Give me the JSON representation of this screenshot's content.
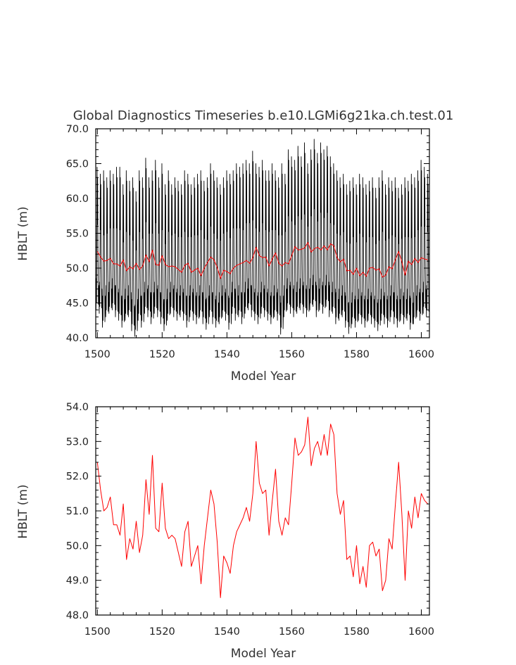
{
  "chart_data": [
    {
      "type": "line",
      "title": "Global Diagnostics Timeseries b.e10.LGMi6g21ka.ch.test.01",
      "xlabel": "Model Year",
      "ylabel": "HBLT (m)",
      "xlim": [
        1499.5,
        1602.5
      ],
      "ylim": [
        40.0,
        70.0
      ],
      "xticks": [
        1500,
        1520,
        1540,
        1560,
        1580,
        1600
      ],
      "yticks": [
        "40.0",
        "45.0",
        "50.0",
        "55.0",
        "60.0",
        "65.0",
        "70.0"
      ],
      "series": [
        {
          "kind": "monthly",
          "color": "#000000",
          "annual_max": [
            64.5,
            63.5,
            64.0,
            63.0,
            64.0,
            63.5,
            64.5,
            64.5,
            62.0,
            64.0,
            62.5,
            63.0,
            61.0,
            64.0,
            63.0,
            65.8,
            63.0,
            64.0,
            65.5,
            63.0,
            65.0,
            62.0,
            64.0,
            62.0,
            63.0,
            62.5,
            62.0,
            64.0,
            63.5,
            62.0,
            63.0,
            63.5,
            64.0,
            62.5,
            63.0,
            65.0,
            64.0,
            63.0,
            62.0,
            63.0,
            64.0,
            63.5,
            64.0,
            65.0,
            64.5,
            65.0,
            65.5,
            65.0,
            66.8,
            65.0,
            64.5,
            65.5,
            64.0,
            64.0,
            65.0,
            64.0,
            63.0,
            65.0,
            63.5,
            67.0,
            66.0,
            65.5,
            67.5,
            66.0,
            68.0,
            65.0,
            67.0,
            68.5,
            66.5,
            68.0,
            67.0,
            67.5,
            66.0,
            65.0,
            64.0,
            63.0,
            63.5,
            62.0,
            62.5,
            63.0,
            62.0,
            63.5,
            63.0,
            62.0,
            62.5,
            63.0,
            61.5,
            63.0,
            64.0,
            62.0,
            63.0,
            62.5,
            63.0,
            61.5,
            62.0,
            63.0,
            62.5,
            63.5,
            63.0,
            64.0,
            65.5,
            64.5,
            63.5
          ],
          "annual_min": [
            44.0,
            43.5,
            41.5,
            43.0,
            43.5,
            44.0,
            43.0,
            42.5,
            41.5,
            42.5,
            43.0,
            41.0,
            40.2,
            42.5,
            41.5,
            43.5,
            43.0,
            42.0,
            43.5,
            43.0,
            42.0,
            41.0,
            42.5,
            43.5,
            43.0,
            42.5,
            43.0,
            42.5,
            41.5,
            43.0,
            42.5,
            42.0,
            43.0,
            42.0,
            41.2,
            43.0,
            42.0,
            41.5,
            42.0,
            43.0,
            42.5,
            41.2,
            43.5,
            42.5,
            43.0,
            42.0,
            43.5,
            44.0,
            43.0,
            42.5,
            42.0,
            43.5,
            43.0,
            42.5,
            42.0,
            43.0,
            42.5,
            40.5,
            43.0,
            44.0,
            43.5,
            43.0,
            43.5,
            44.0,
            43.5,
            43.0,
            44.0,
            44.5,
            43.0,
            44.0,
            43.5,
            44.5,
            43.0,
            43.5,
            42.0,
            42.5,
            43.0,
            41.5,
            40.6,
            42.0,
            41.5,
            42.5,
            42.0,
            41.5,
            42.5,
            42.0,
            41.5,
            41.0,
            42.5,
            42.0,
            41.5,
            43.0,
            42.0,
            41.5,
            42.5,
            42.0,
            42.5,
            41.2,
            42.0,
            43.0,
            42.5,
            43.5,
            43.0
          ]
        },
        {
          "kind": "annual",
          "color": "#ff0000",
          "x": [
            1500,
            1501,
            1502,
            1503,
            1504,
            1505,
            1506,
            1507,
            1508,
            1509,
            1510,
            1511,
            1512,
            1513,
            1514,
            1515,
            1516,
            1517,
            1518,
            1519,
            1520,
            1521,
            1522,
            1523,
            1524,
            1525,
            1526,
            1527,
            1528,
            1529,
            1530,
            1531,
            1532,
            1533,
            1534,
            1535,
            1536,
            1537,
            1538,
            1539,
            1540,
            1541,
            1542,
            1543,
            1544,
            1545,
            1546,
            1547,
            1548,
            1549,
            1550,
            1551,
            1552,
            1553,
            1554,
            1555,
            1556,
            1557,
            1558,
            1559,
            1560,
            1561,
            1562,
            1563,
            1564,
            1565,
            1566,
            1567,
            1568,
            1569,
            1570,
            1571,
            1572,
            1573,
            1574,
            1575,
            1576,
            1577,
            1578,
            1579,
            1580,
            1581,
            1582,
            1583,
            1584,
            1585,
            1586,
            1587,
            1588,
            1589,
            1590,
            1591,
            1592,
            1593,
            1594,
            1595,
            1596,
            1597,
            1598,
            1599,
            1600,
            1601,
            1602
          ],
          "values": [
            52.4,
            51.6,
            51.0,
            51.1,
            51.4,
            50.6,
            50.6,
            50.3,
            51.2,
            49.6,
            50.2,
            49.9,
            50.7,
            49.8,
            50.3,
            51.9,
            50.9,
            52.6,
            50.5,
            50.4,
            51.8,
            50.5,
            50.2,
            50.3,
            50.2,
            49.8,
            49.4,
            50.4,
            50.7,
            49.4,
            49.7,
            50.0,
            48.9,
            50.0,
            50.8,
            51.6,
            51.2,
            50.1,
            48.5,
            49.7,
            49.5,
            49.2,
            50.0,
            50.4,
            50.6,
            50.8,
            51.1,
            50.7,
            51.5,
            53.0,
            51.8,
            51.5,
            51.6,
            50.3,
            51.3,
            52.2,
            50.7,
            50.3,
            50.8,
            50.6,
            51.8,
            53.1,
            52.6,
            52.7,
            52.9,
            53.7,
            52.3,
            52.8,
            53.0,
            52.6,
            53.2,
            52.6,
            53.5,
            53.2,
            51.5,
            50.9,
            51.3,
            49.6,
            49.7,
            49.1,
            50.0,
            48.9,
            49.4,
            48.8,
            50.0,
            50.1,
            49.7,
            49.9,
            48.7,
            49.0,
            50.2,
            49.9,
            51.2,
            52.4,
            50.9,
            49.0,
            51.0,
            50.5,
            51.4,
            50.8,
            51.5,
            51.3,
            51.2
          ]
        }
      ]
    },
    {
      "type": "line",
      "title": "",
      "xlabel": "Model Year",
      "ylabel": "HBLT (m)",
      "xlim": [
        1499.5,
        1602.5
      ],
      "ylim": [
        48.0,
        54.0
      ],
      "xticks": [
        1500,
        1520,
        1540,
        1560,
        1580,
        1600
      ],
      "yticks": [
        "48.0",
        "49.0",
        "50.0",
        "51.0",
        "52.0",
        "53.0",
        "54.0"
      ],
      "series": [
        {
          "kind": "annual",
          "color": "#ff0000",
          "x": [
            1500,
            1501,
            1502,
            1503,
            1504,
            1505,
            1506,
            1507,
            1508,
            1509,
            1510,
            1511,
            1512,
            1513,
            1514,
            1515,
            1516,
            1517,
            1518,
            1519,
            1520,
            1521,
            1522,
            1523,
            1524,
            1525,
            1526,
            1527,
            1528,
            1529,
            1530,
            1531,
            1532,
            1533,
            1534,
            1535,
            1536,
            1537,
            1538,
            1539,
            1540,
            1541,
            1542,
            1543,
            1544,
            1545,
            1546,
            1547,
            1548,
            1549,
            1550,
            1551,
            1552,
            1553,
            1554,
            1555,
            1556,
            1557,
            1558,
            1559,
            1560,
            1561,
            1562,
            1563,
            1564,
            1565,
            1566,
            1567,
            1568,
            1569,
            1570,
            1571,
            1572,
            1573,
            1574,
            1575,
            1576,
            1577,
            1578,
            1579,
            1580,
            1581,
            1582,
            1583,
            1584,
            1585,
            1586,
            1587,
            1588,
            1589,
            1590,
            1591,
            1592,
            1593,
            1594,
            1595,
            1596,
            1597,
            1598,
            1599,
            1600,
            1601,
            1602
          ],
          "values": [
            52.4,
            51.6,
            51.0,
            51.1,
            51.4,
            50.6,
            50.6,
            50.3,
            51.2,
            49.6,
            50.2,
            49.9,
            50.7,
            49.8,
            50.3,
            51.9,
            50.9,
            52.6,
            50.5,
            50.4,
            51.8,
            50.5,
            50.2,
            50.3,
            50.2,
            49.8,
            49.4,
            50.4,
            50.7,
            49.4,
            49.7,
            50.0,
            48.9,
            50.0,
            50.8,
            51.6,
            51.2,
            50.1,
            48.5,
            49.7,
            49.5,
            49.2,
            50.0,
            50.4,
            50.6,
            50.8,
            51.1,
            50.7,
            51.5,
            53.0,
            51.8,
            51.5,
            51.6,
            50.3,
            51.3,
            52.2,
            50.7,
            50.3,
            50.8,
            50.6,
            51.8,
            53.1,
            52.6,
            52.7,
            52.9,
            53.7,
            52.3,
            52.8,
            53.0,
            52.6,
            53.2,
            52.6,
            53.5,
            53.2,
            51.5,
            50.9,
            51.3,
            49.6,
            49.7,
            49.1,
            50.0,
            48.9,
            49.4,
            48.8,
            50.0,
            50.1,
            49.7,
            49.9,
            48.7,
            49.0,
            50.2,
            49.9,
            51.2,
            52.4,
            50.9,
            49.0,
            51.0,
            50.5,
            51.4,
            50.8,
            51.5,
            51.3,
            51.2
          ]
        }
      ]
    }
  ]
}
